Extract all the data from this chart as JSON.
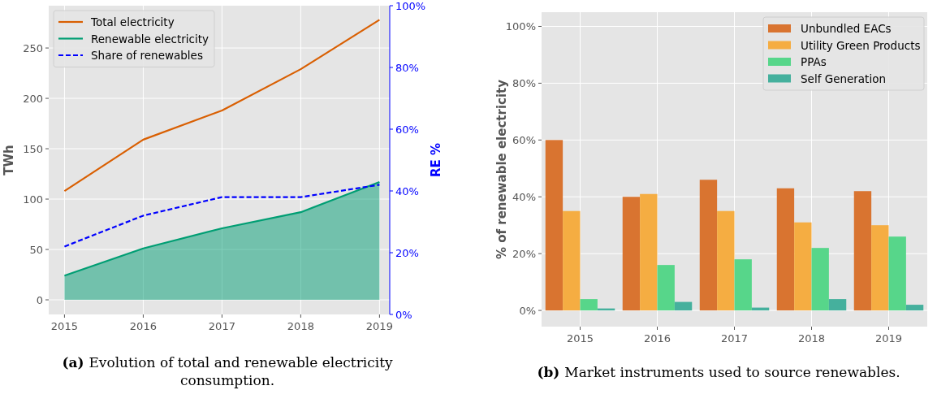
{
  "chart_data": [
    {
      "type": "line",
      "x": [
        2015,
        2016,
        2017,
        2018,
        2019
      ],
      "xlim": [
        2014.8,
        2019.13
      ],
      "xticks": [
        2015,
        2016,
        2017,
        2018,
        2019
      ],
      "ylim": [
        -14.5,
        292
      ],
      "yticks": [
        0,
        50,
        100,
        150,
        200,
        250
      ],
      "y2lim": [
        0,
        100
      ],
      "y2ticks": [
        {
          "value": 0,
          "label": "0%"
        },
        {
          "value": 20,
          "label": "20%"
        },
        {
          "value": 40,
          "label": "40%"
        },
        {
          "value": 60,
          "label": "60%"
        },
        {
          "value": 80,
          "label": "80%"
        },
        {
          "value": 100,
          "label": "100%"
        }
      ],
      "ylabel": "TWh",
      "y2label": "RE %",
      "grid": true,
      "legend": "top left",
      "series": [
        {
          "name": "Total electricity",
          "color": "#d95f02",
          "values": [
            108,
            159,
            188,
            229,
            278
          ]
        },
        {
          "name": "Renewable electricity",
          "type": "area",
          "color": "#009e73",
          "values": [
            24,
            51,
            71,
            87,
            117
          ]
        },
        {
          "name": "Share of renewables",
          "color": "#0000ff",
          "axis": "y2",
          "line_style": "dashed",
          "values": [
            22,
            32,
            38,
            38,
            42
          ]
        }
      ],
      "annotations": [
        "(a) Evolution of total and renewable electricity consumption."
      ]
    },
    {
      "type": "bar",
      "categories": [
        "2015",
        "2016",
        "2017",
        "2018",
        "2019"
      ],
      "ylim": [
        -5.7,
        105
      ],
      "yticks": [
        {
          "value": 0,
          "label": "0%"
        },
        {
          "value": 20,
          "label": "20%"
        },
        {
          "value": 40,
          "label": "40%"
        },
        {
          "value": 60,
          "label": "60%"
        },
        {
          "value": 80,
          "label": "80%"
        },
        {
          "value": 100,
          "label": "100%"
        }
      ],
      "ylabel": "% of renewable electricity",
      "grid": true,
      "legend": "top right",
      "series": [
        {
          "name": "Unbundled EACs",
          "color": "#d97430",
          "values": [
            60,
            40,
            46,
            43,
            42
          ]
        },
        {
          "name": "Utility Green Products",
          "color": "#f5ad42",
          "values": [
            35,
            41,
            35,
            31,
            30
          ]
        },
        {
          "name": "PPAs",
          "color": "#57d68a",
          "values": [
            4,
            16,
            18,
            22,
            26
          ]
        },
        {
          "name": "Self Generation",
          "color": "#45b09d",
          "values": [
            0.7,
            3,
            1,
            4,
            2
          ]
        }
      ],
      "annotations": [
        "(b) Market instruments used to source renewables."
      ]
    }
  ]
}
